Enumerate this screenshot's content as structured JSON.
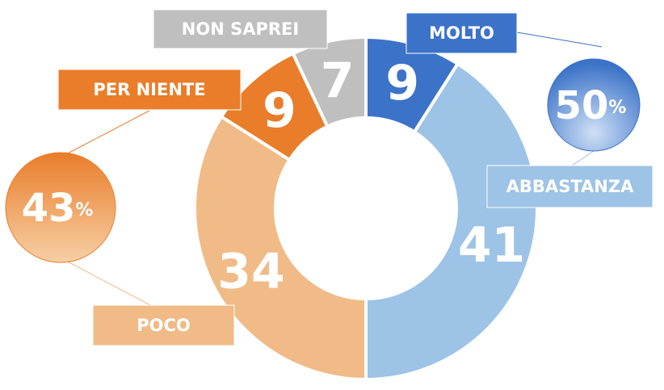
{
  "chart_data": {
    "type": "donut",
    "categories": [
      "MOLTO",
      "ABBASTANZA",
      "POCO",
      "PER NIENTE",
      "NON SAPREI"
    ],
    "values": [
      9,
      41,
      34,
      9,
      7
    ],
    "colors": [
      "#3b73c8",
      "#9dc3e6",
      "#f0bb86",
      "#e97d2a",
      "#bfbfbf"
    ],
    "unit": "%",
    "totals": [
      {
        "value": 50,
        "color": "#3b73c8"
      },
      {
        "value": 43,
        "color": "#e97d2a"
      }
    ]
  }
}
